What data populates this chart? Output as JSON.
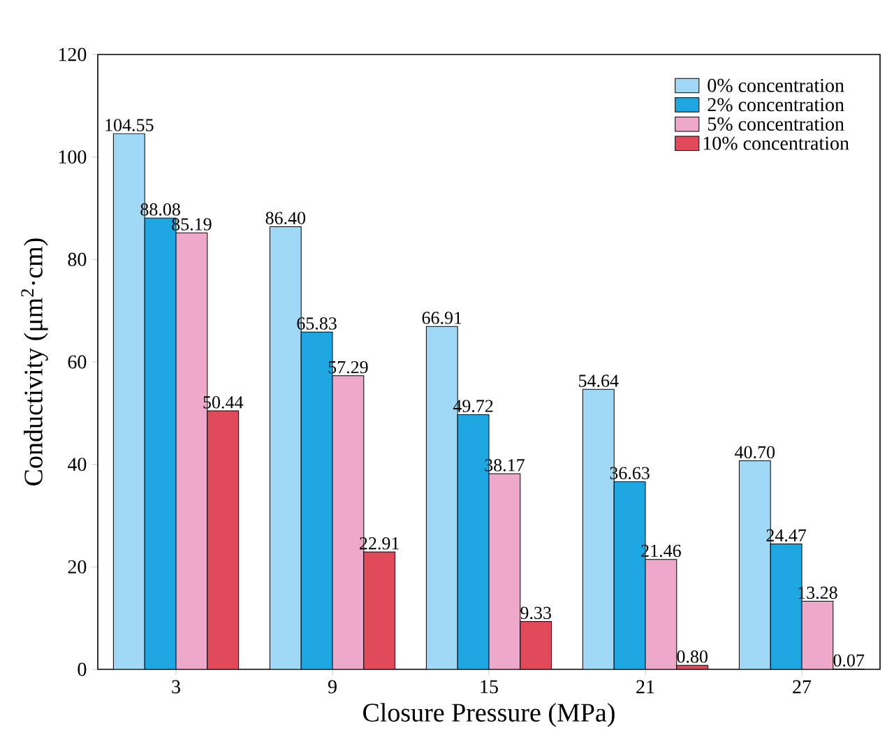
{
  "chart_data": {
    "type": "bar",
    "xlabel": "Closure Pressure (MPa)",
    "ylabel": "Conductivity (μm$^{2}$·cm)",
    "categories": [
      "3",
      "9",
      "15",
      "21",
      "27"
    ],
    "ylim": [
      0,
      120
    ],
    "yticks": [
      0,
      20,
      40,
      60,
      80,
      100,
      120
    ],
    "legend": "top right",
    "series": [
      {
        "name": "0% concentration",
        "color": "#9fd9f5",
        "values": [
          104.55,
          86.4,
          66.91,
          54.64,
          40.7
        ],
        "value_labels": [
          "104.55",
          "86.40",
          "66.91",
          "54.64",
          "40.70"
        ]
      },
      {
        "name": "2% concentration",
        "color": "#1ea6e0",
        "values": [
          88.08,
          65.83,
          49.72,
          36.63,
          24.47
        ],
        "value_labels": [
          "88.08",
          "65.83",
          "49.72",
          "36.63",
          "24.47"
        ]
      },
      {
        "name": "5% concentration",
        "color": "#eea8c9",
        "values": [
          85.19,
          57.29,
          38.17,
          21.46,
          13.28
        ],
        "value_labels": [
          "85.19",
          "57.29",
          "38.17",
          "21.46",
          "13.28"
        ]
      },
      {
        "name": "10% concentration",
        "color": "#e04a5b",
        "values": [
          50.44,
          22.91,
          9.33,
          0.8,
          0.07
        ],
        "value_labels": [
          "50.44",
          "22.91",
          "9.33",
          "0.80",
          "0.07"
        ]
      }
    ]
  }
}
